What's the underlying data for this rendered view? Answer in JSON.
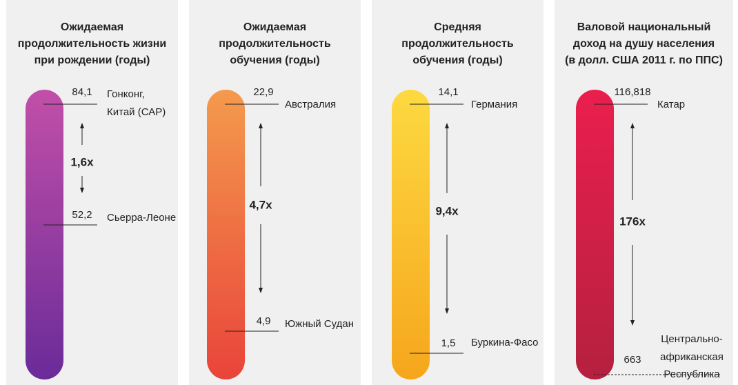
{
  "panels": [
    {
      "title": [
        "Ожидаемая",
        "продолжительность жизни",
        "при рождении (годы)"
      ],
      "top": {
        "value": "84,1",
        "country": [
          "Гонконг,",
          "Китай (САР)"
        ]
      },
      "bottom": {
        "value": "52,2",
        "country": [
          "Сьерра-Леоне"
        ]
      },
      "ratio": "1,6x"
    },
    {
      "title": [
        "Ожидаемая",
        "продолжительность",
        "обучения (годы)"
      ],
      "top": {
        "value": "22,9",
        "country": [
          "Австралия"
        ]
      },
      "bottom": {
        "value": "4,9",
        "country": [
          "Южный Судан"
        ]
      },
      "ratio": "4,7x"
    },
    {
      "title": [
        "Средняя",
        "продолжительность",
        "обучения (годы)"
      ],
      "top": {
        "value": "14,1",
        "country": [
          "Германия"
        ]
      },
      "bottom": {
        "value": "1,5",
        "country": [
          "Буркина-Фасо"
        ]
      },
      "ratio": "9,4x"
    },
    {
      "title": [
        "Валовой национальный",
        "доход на душу населения",
        "(в долл. США 2011 г. по ППС)"
      ],
      "top": {
        "value": "116,818",
        "country": [
          "Катар"
        ]
      },
      "bottom": {
        "value": "663",
        "country": [
          "Центрально-",
          "африканская",
          "Республика"
        ]
      },
      "ratio": "176x"
    }
  ]
}
